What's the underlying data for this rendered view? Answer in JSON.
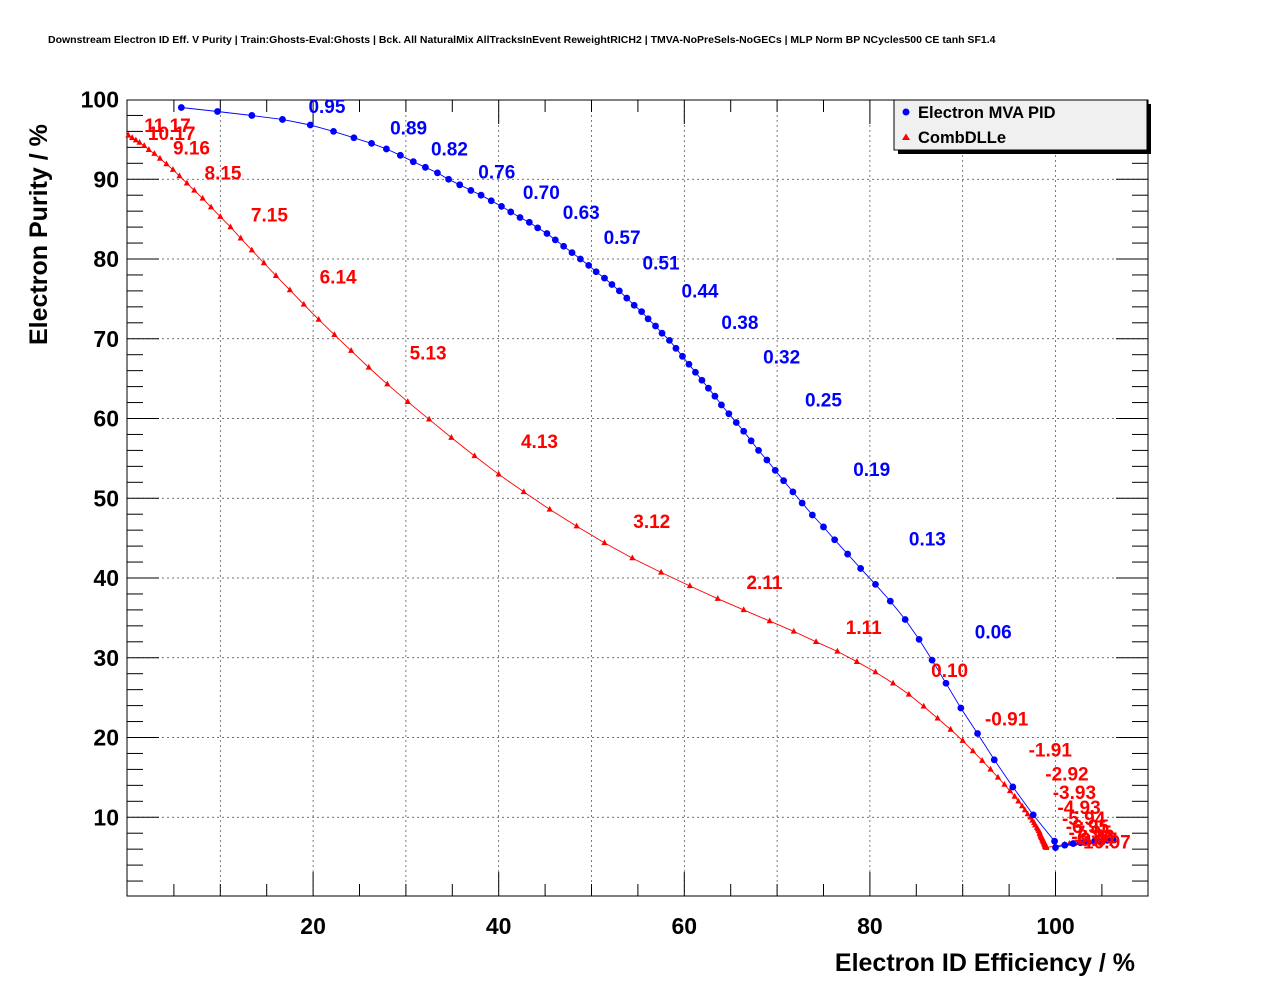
{
  "chart_data": {
    "type": "scatter",
    "title": "Downstream Electron ID Eff. V Purity | Train:Ghosts-Eval:Ghosts | Bck. All NaturalMix AllTracksInEvent ReweightRICH2 | TMVA-NoPreSels-NoGECs | MLP Norm BP NCycles500 CE tanh SF1.4",
    "xlabel": "Electron ID Efficiency / %",
    "ylabel": "Electron Purity / %",
    "xlim": [
      0,
      110
    ],
    "ylim": [
      0,
      100
    ],
    "x_ticks": [
      "20",
      "40",
      "60",
      "80",
      "100"
    ],
    "y_ticks": [
      "10",
      "20",
      "30",
      "40",
      "50",
      "60",
      "70",
      "80",
      "90",
      "100"
    ],
    "grid": true,
    "legend_position": "top-right",
    "series": [
      {
        "name": "Electron MVA PID",
        "color": "#0000ff",
        "marker": "circle",
        "x": [
          5.8,
          9.7,
          13.4,
          16.7,
          19.7,
          22.2,
          24.4,
          26.3,
          27.9,
          29.4,
          30.8,
          32.1,
          33.4,
          34.6,
          35.8,
          37.0,
          38.1,
          39.2,
          40.3,
          41.3,
          42.3,
          43.3,
          44.2,
          45.2,
          46.1,
          47.0,
          47.9,
          48.8,
          49.7,
          50.5,
          51.4,
          52.2,
          53.0,
          53.8,
          54.6,
          55.4,
          56.1,
          56.9,
          57.6,
          58.4,
          59.1,
          59.8,
          60.5,
          61.2,
          61.9,
          62.6,
          63.3,
          64.0,
          64.8,
          65.6,
          66.4,
          67.2,
          68.0,
          68.9,
          69.8,
          70.7,
          71.7,
          72.7,
          73.8,
          75.0,
          76.2,
          77.6,
          79.0,
          80.6,
          82.2,
          83.8,
          85.3,
          86.7,
          88.2,
          89.8,
          91.6,
          93.4,
          95.4,
          97.6,
          99.9,
          100.0,
          101.0,
          101.9,
          102.7,
          103.5,
          104.2,
          105.0,
          105.6,
          106.2
        ],
        "y": [
          99.0,
          98.5,
          98.0,
          97.5,
          96.8,
          96.0,
          95.2,
          94.5,
          93.8,
          93.0,
          92.2,
          91.5,
          90.8,
          90.0,
          89.3,
          88.6,
          88.0,
          87.3,
          86.6,
          85.9,
          85.2,
          84.6,
          83.9,
          83.2,
          82.4,
          81.6,
          80.8,
          80.0,
          79.2,
          78.4,
          77.6,
          76.8,
          76.0,
          75.1,
          74.2,
          73.4,
          72.5,
          71.6,
          70.7,
          69.8,
          68.8,
          67.8,
          66.8,
          65.8,
          64.8,
          63.8,
          62.8,
          61.7,
          60.6,
          59.5,
          58.4,
          57.2,
          56.0,
          54.8,
          53.5,
          52.2,
          50.8,
          49.4,
          47.9,
          46.4,
          44.8,
          43.0,
          41.2,
          39.2,
          37.1,
          34.8,
          32.3,
          29.7,
          26.8,
          23.7,
          20.5,
          17.2,
          13.8,
          10.3,
          7.0,
          6.2,
          6.5,
          6.7,
          6.8,
          6.9,
          7.0,
          7.0,
          7.1,
          7.2
        ],
        "labels": [
          "0.95",
          "0.89",
          "0.82",
          "0.76",
          "0.70",
          "0.63",
          "0.57",
          "0.51",
          "0.44",
          "0.38",
          "0.32",
          "0.25",
          "0.19",
          "0.13",
          "0.06"
        ],
        "label_x": [
          19.5,
          28.3,
          32.7,
          37.8,
          42.6,
          46.9,
          51.3,
          55.5,
          59.7,
          64.0,
          68.5,
          73.0,
          78.2,
          84.2,
          91.3
        ],
        "label_y": [
          98.3,
          95.6,
          93.0,
          90.1,
          87.5,
          85.0,
          81.9,
          78.7,
          75.2,
          71.2,
          66.9,
          61.5,
          52.8,
          44.1,
          32.4
        ]
      },
      {
        "name": "CombDLLe",
        "color": "#ff0000",
        "marker": "triangle",
        "x": [
          0.1,
          0.5,
          0.9,
          1.3,
          1.8,
          2.3,
          2.9,
          3.5,
          4.2,
          4.9,
          5.6,
          6.4,
          7.2,
          8.1,
          9.0,
          10.0,
          11.1,
          12.2,
          13.4,
          14.7,
          16.0,
          17.5,
          19.0,
          20.6,
          22.3,
          24.1,
          26.0,
          28.0,
          30.2,
          32.5,
          34.9,
          37.4,
          40.0,
          42.7,
          45.5,
          48.4,
          51.4,
          54.4,
          57.5,
          60.6,
          63.6,
          66.4,
          69.2,
          71.8,
          74.2,
          76.5,
          78.6,
          80.6,
          82.5,
          84.2,
          85.8,
          87.3,
          88.7,
          90.0,
          91.1,
          92.1,
          93.0,
          93.8,
          94.5,
          95.1,
          95.6,
          96.0,
          96.4,
          96.7,
          97.0,
          97.3,
          97.5,
          97.7,
          97.8,
          98.0,
          98.1,
          98.2,
          98.3,
          98.3,
          98.4,
          98.4,
          98.5,
          98.5,
          98.6,
          98.6,
          98.6,
          98.7,
          98.7,
          98.7,
          98.8,
          98.8,
          98.8,
          98.8,
          98.8,
          98.9,
          98.9,
          98.9,
          98.9,
          98.9,
          98.9,
          99.0,
          99.0,
          99.0,
          99.0,
          99.0,
          101.0,
          101.5,
          102.0,
          102.5,
          103.0,
          103.5,
          104.0,
          104.5,
          105.0,
          105.5
        ],
        "y": [
          95.5,
          95.2,
          94.9,
          94.6,
          94.2,
          93.7,
          93.2,
          92.6,
          91.9,
          91.2,
          90.4,
          89.5,
          88.6,
          87.6,
          86.5,
          85.3,
          84.0,
          82.6,
          81.1,
          79.5,
          77.9,
          76.1,
          74.3,
          72.4,
          70.5,
          68.5,
          66.4,
          64.3,
          62.1,
          59.9,
          57.6,
          55.3,
          53.0,
          50.8,
          48.6,
          46.5,
          44.4,
          42.5,
          40.7,
          39.0,
          37.4,
          36.0,
          34.6,
          33.3,
          32.0,
          30.8,
          29.5,
          28.2,
          26.8,
          25.4,
          23.9,
          22.4,
          21.0,
          19.6,
          18.3,
          17.1,
          16.0,
          15.0,
          14.1,
          13.3,
          12.6,
          12.0,
          11.4,
          10.9,
          10.4,
          10.0,
          9.6,
          9.3,
          9.0,
          8.7,
          8.5,
          8.3,
          8.1,
          7.9,
          7.7,
          7.6,
          7.5,
          7.4,
          7.3,
          7.2,
          7.1,
          7.0,
          6.9,
          6.9,
          6.8,
          6.8,
          6.7,
          6.7,
          6.6,
          6.6,
          6.5,
          6.5,
          6.4,
          6.4,
          6.3,
          6.3,
          6.3,
          6.2,
          6.2,
          6.2,
          6.6,
          6.7,
          6.7,
          6.8,
          6.8,
          6.8,
          6.9,
          6.9,
          7.0,
          7.0
        ],
        "labels": [
          "11.17",
          "10.17",
          "9.16",
          "8.15",
          "7.15",
          "6.14",
          "5.13",
          "4.13",
          "3.12",
          "2.11",
          "1.11",
          "0.10",
          "-0.91",
          "-1.91",
          "-2.92",
          "-3.93",
          "-4.93",
          "-5.94",
          "-6.95",
          "-7.95",
          "-8.96",
          "-9.97",
          "-10.97"
        ],
        "label_x": [
          1.8,
          2.2,
          4.9,
          8.3,
          13.3,
          20.7,
          30.4,
          42.4,
          54.5,
          66.7,
          77.4,
          86.6,
          92.4,
          97.1,
          98.9,
          99.7,
          100.2,
          100.7,
          101.1,
          101.4,
          101.7,
          102.0,
          102.3
        ],
        "label_y": [
          95.9,
          94.9,
          93.1,
          90.0,
          84.7,
          76.9,
          67.4,
          56.3,
          46.3,
          38.6,
          33.0,
          27.6,
          21.5,
          17.6,
          14.6,
          12.3,
          10.4,
          9.0,
          8.0,
          7.3,
          6.8,
          6.4,
          6.1
        ]
      }
    ]
  }
}
